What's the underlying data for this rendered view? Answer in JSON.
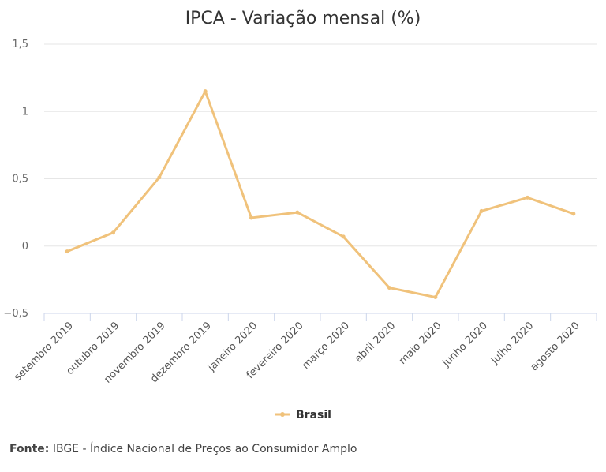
{
  "chart_data": {
    "type": "line",
    "title": "IPCA - Variação mensal (%)",
    "categories": [
      "setembro 2019",
      "outubro 2019",
      "novembro 2019",
      "dezembro 2019",
      "janeiro 2020",
      "fevereiro 2020",
      "março 2020",
      "abril 2020",
      "maio 2020",
      "junho 2020",
      "julho 2020",
      "agosto 2020"
    ],
    "series": [
      {
        "name": "Brasil",
        "values": [
          -0.04,
          0.1,
          0.51,
          1.15,
          0.21,
          0.25,
          0.07,
          -0.31,
          -0.38,
          0.26,
          0.36,
          0.24
        ]
      }
    ],
    "yticks": [
      -0.5,
      0,
      0.5,
      1,
      1.5
    ],
    "ytick_labels": [
      "−0,5",
      "0",
      "0,5",
      "1",
      "1,5"
    ],
    "ylim": [
      -0.5,
      1.5
    ],
    "grid": true,
    "legend": "bottom-center",
    "series_color": "#f0c27b"
  },
  "footer": {
    "label": "Fonte:",
    "text": " IBGE - Índice Nacional de Preços ao Consumidor Amplo"
  }
}
